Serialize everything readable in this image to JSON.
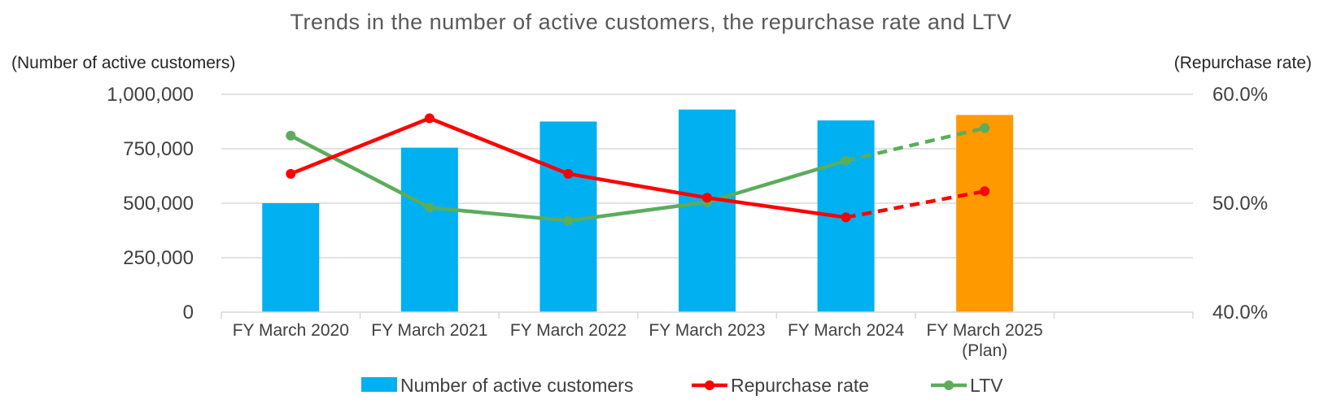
{
  "chart_data": {
    "type": "bar",
    "title": "Trends in the number of active customers, the repurchase rate and LTV",
    "ylabel": "(Number of active customers)",
    "y2label": "(Repurchase rate)",
    "ylim": [
      0,
      1000000
    ],
    "y2lim": [
      40.0,
      60.0
    ],
    "y_ticks": [
      "1,000,000",
      "750,000",
      "500,000",
      "250,000",
      "0"
    ],
    "y_tick_values": [
      1000000,
      750000,
      500000,
      250000,
      0
    ],
    "y2_ticks": [
      "60.0%",
      "50.0%",
      "40.0%"
    ],
    "y2_tick_values": [
      60.0,
      50.0,
      40.0
    ],
    "categories": [
      "FY March 2020",
      "FY March 2021",
      "FY March 2022",
      "FY March 2023",
      "FY March 2024",
      "FY March 2025"
    ],
    "category_sublabels": [
      "",
      "",
      "",
      "",
      "",
      "(Plan)"
    ],
    "grid": true,
    "legend_position": "bottom",
    "series": [
      {
        "name": "Number of active customers",
        "type": "bar",
        "axis": "left",
        "color": "#00B0F0",
        "plan_color": "#FF9900",
        "values": [
          500000,
          755000,
          875000,
          930000,
          880000,
          905000
        ]
      },
      {
        "name": "Repurchase rate",
        "type": "line",
        "axis": "right",
        "color": "#FF0000",
        "values": [
          52.7,
          57.8,
          52.7,
          50.5,
          48.7,
          51.1
        ],
        "dashed_from_index": 4
      },
      {
        "name": "LTV",
        "type": "line",
        "axis": "left_unscaled",
        "color": "#5BAD5B",
        "values": [
          810000,
          480000,
          420000,
          505000,
          695000,
          845000
        ],
        "dashed_from_index": 4
      }
    ]
  }
}
